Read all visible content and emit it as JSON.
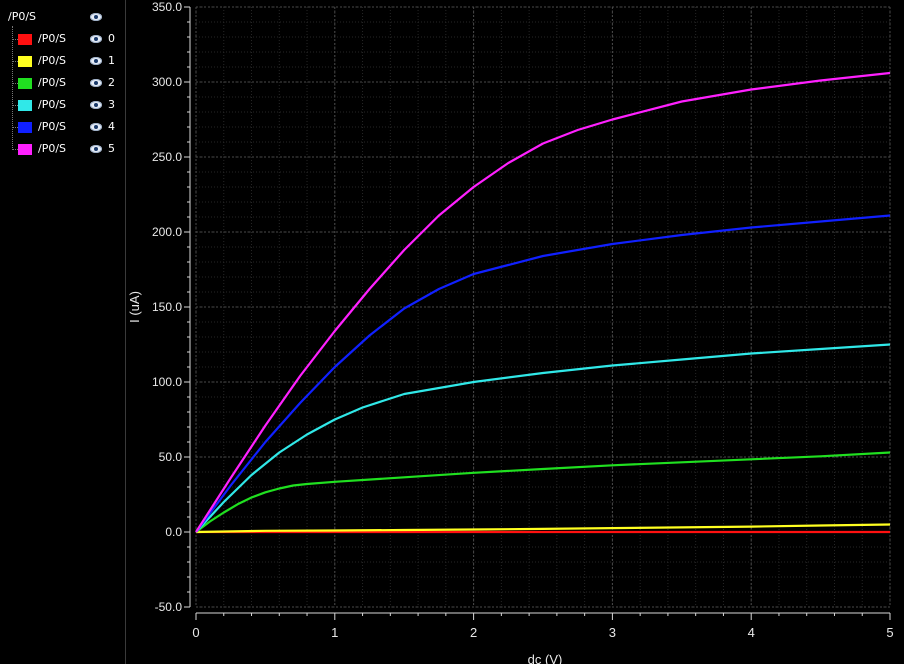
{
  "legend": {
    "root_label": "/P0/S",
    "items": [
      {
        "label": "/P0/S",
        "index": "0",
        "color": "#ff1010"
      },
      {
        "label": "/P0/S",
        "index": "1",
        "color": "#ffff20"
      },
      {
        "label": "/P0/S",
        "index": "2",
        "color": "#20e020"
      },
      {
        "label": "/P0/S",
        "index": "3",
        "color": "#30e8e8"
      },
      {
        "label": "/P0/S",
        "index": "4",
        "color": "#1020ff"
      },
      {
        "label": "/P0/S",
        "index": "5",
        "color": "#ff20ff"
      }
    ]
  },
  "chart_data": {
    "type": "line",
    "title": "",
    "xlabel": "dc (V)",
    "ylabel": "I (uA)",
    "xlim": [
      0,
      5
    ],
    "ylim": [
      -50,
      350
    ],
    "xticks": [
      "0",
      "1",
      "2",
      "3",
      "4",
      "5"
    ],
    "yticks": [
      "-50.0",
      "0.0",
      "50.0",
      "100.0",
      "150.0",
      "200.0",
      "250.0",
      "300.0",
      "350.0"
    ],
    "grid": true,
    "background": "#000000",
    "series": [
      {
        "name": "/P0/S 0",
        "color": "#ff1010",
        "x": [
          0,
          1,
          2,
          3,
          4,
          5
        ],
        "y": [
          0,
          0,
          0,
          0,
          0,
          0
        ]
      },
      {
        "name": "/P0/S 1",
        "color": "#ffff20",
        "x": [
          0,
          0.5,
          1,
          1.5,
          2,
          2.5,
          3,
          3.5,
          4,
          4.5,
          5
        ],
        "y": [
          0,
          0.8,
          1.0,
          1.3,
          1.7,
          2.1,
          2.6,
          3.1,
          3.6,
          4.3,
          5.0
        ]
      },
      {
        "name": "/P0/S 2",
        "color": "#20e020",
        "x": [
          0,
          0.1,
          0.2,
          0.3,
          0.4,
          0.5,
          0.6,
          0.7,
          0.8,
          1.0,
          1.5,
          2,
          2.5,
          3,
          3.5,
          4,
          4.5,
          5
        ],
        "y": [
          0,
          7,
          13,
          18.5,
          23,
          26.5,
          29,
          31,
          32,
          33.5,
          36.5,
          39.5,
          42,
          44.5,
          46.5,
          48.5,
          50.5,
          53
        ]
      },
      {
        "name": "/P0/S 3",
        "color": "#30e8e8",
        "x": [
          0,
          0.2,
          0.4,
          0.6,
          0.8,
          1.0,
          1.2,
          1.5,
          2,
          2.5,
          3,
          3.5,
          4,
          4.5,
          5
        ],
        "y": [
          0,
          20,
          38,
          53,
          65,
          75,
          83,
          92,
          100,
          106,
          111,
          115,
          119,
          122,
          125
        ]
      },
      {
        "name": "/P0/S 4",
        "color": "#1020ff",
        "x": [
          0,
          0.25,
          0.5,
          0.75,
          1.0,
          1.25,
          1.5,
          1.75,
          2,
          2.5,
          3,
          3.5,
          4,
          4.5,
          5
        ],
        "y": [
          0,
          31,
          60,
          86,
          110,
          131,
          149,
          162,
          172,
          184,
          192,
          198,
          203,
          207,
          211
        ]
      },
      {
        "name": "/P0/S 5",
        "color": "#ff20ff",
        "x": [
          0,
          0.25,
          0.5,
          0.75,
          1.0,
          1.25,
          1.5,
          1.75,
          2,
          2.25,
          2.5,
          2.75,
          3,
          3.5,
          4,
          4.5,
          5
        ],
        "y": [
          0,
          36,
          71,
          104,
          134,
          162,
          188,
          211,
          230,
          246,
          259,
          268,
          275,
          287,
          295,
          301,
          306
        ]
      }
    ]
  }
}
